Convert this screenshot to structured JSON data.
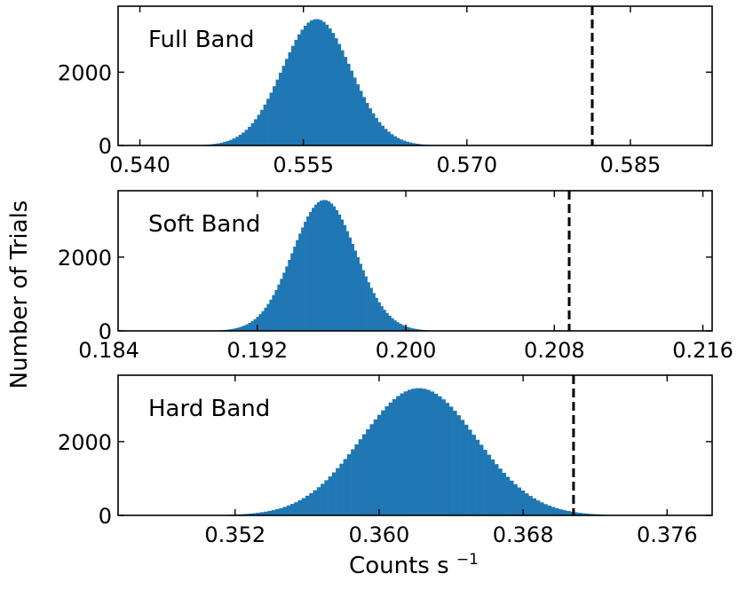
{
  "figure": {
    "ylabel": "Number of Trials",
    "xlabel_text": "Counts s",
    "xlabel_superscript": "−1"
  },
  "chart_data": [
    {
      "type": "bar",
      "panel_label": "Full Band",
      "xlim": [
        0.538,
        0.5925
      ],
      "ylim": [
        0,
        3800
      ],
      "xticks": [
        0.54,
        0.555,
        0.57,
        0.585
      ],
      "xtick_labels": [
        "0.540",
        "0.555",
        "0.570",
        "0.585"
      ],
      "yticks": [
        0,
        2000
      ],
      "ytick_labels": [
        "0",
        "2000"
      ],
      "dist": {
        "mean": 0.5562,
        "sigma": 0.00315,
        "peak": 3450,
        "from": 0.5428,
        "to": 0.5698,
        "bins": 95
      },
      "threshold": 0.5815
    },
    {
      "type": "bar",
      "panel_label": "Soft Band",
      "xlim": [
        0.1845,
        0.2165
      ],
      "ylim": [
        0,
        3800
      ],
      "xticks": [
        0.184,
        0.192,
        0.2,
        0.208,
        0.216
      ],
      "xtick_labels": [
        "0.184",
        "0.192",
        "0.200",
        "0.208",
        "0.216"
      ],
      "yticks": [
        0,
        2000
      ],
      "ytick_labels": [
        "0",
        "2000"
      ],
      "dist": {
        "mean": 0.1956,
        "sigma": 0.0017,
        "peak": 3550,
        "from": 0.1898,
        "to": 0.2012,
        "bins": 80
      },
      "threshold": 0.2088
    },
    {
      "type": "bar",
      "panel_label": "Hard Band",
      "xlim": [
        0.3455,
        0.3785
      ],
      "ylim": [
        0,
        3800
      ],
      "xticks": [
        0.352,
        0.36,
        0.368,
        0.376
      ],
      "xtick_labels": [
        "0.352",
        "0.360",
        "0.368",
        "0.376"
      ],
      "yticks": [
        0,
        2000
      ],
      "ytick_labels": [
        "0",
        "2000"
      ],
      "dist": {
        "mean": 0.3622,
        "sigma": 0.0032,
        "peak": 3450,
        "from": 0.3515,
        "to": 0.3725,
        "bins": 100
      },
      "threshold": 0.3708
    }
  ]
}
